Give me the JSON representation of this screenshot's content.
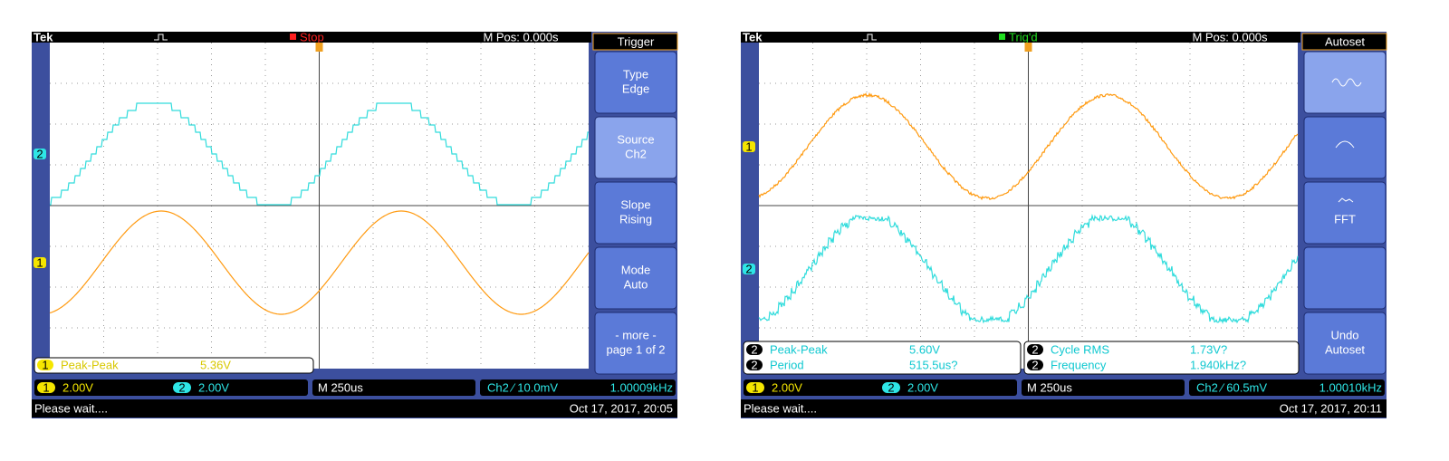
{
  "screens": [
    {
      "top_bar": {
        "brand": "Tek",
        "state": "Stop",
        "position": "M Pos: 0.000s"
      },
      "menu": {
        "title": "Trigger",
        "buttons": [
          [
            "Type",
            "Edge"
          ],
          [
            "Source",
            "Ch2"
          ],
          [
            "Slope",
            "Rising"
          ],
          [
            "Mode",
            "Auto"
          ],
          [
            "- more -",
            "page 1 of 2"
          ]
        ]
      },
      "measurements": [
        {
          "channel": "1",
          "name": "Peak-Peak",
          "value": "5.36V"
        }
      ],
      "channels": [
        {
          "number": "1",
          "scale": "2.00V"
        },
        {
          "number": "2",
          "scale": "2.00V"
        }
      ],
      "timebase": "M 250us",
      "trigger_readout": "Ch2 ⁄ 10.0mV",
      "frequency": "1.00009kHz",
      "status": "Please wait....",
      "timestamp": "Oct 17, 2017, 20:05"
    },
    {
      "top_bar": {
        "brand": "Tek",
        "state": "Trig'd",
        "position": "M Pos: 0.000s"
      },
      "menu": {
        "title": "Autoset",
        "buttons": [
          [],
          [],
          [
            "FFT"
          ],
          [],
          [
            "Undo",
            "Autoset"
          ]
        ]
      },
      "measurements": [
        {
          "channel": "2",
          "name": "Peak-Peak",
          "value": "5.60V"
        },
        {
          "channel": "2",
          "name": "Period",
          "value": "515.5us?"
        },
        {
          "channel": "2",
          "name": "Cycle RMS",
          "value": "1.73V?"
        },
        {
          "channel": "2",
          "name": "Frequency",
          "value": "1.940kHz?"
        }
      ],
      "channels": [
        {
          "number": "1",
          "scale": "2.00V"
        },
        {
          "number": "2",
          "scale": "2.00V"
        }
      ],
      "timebase": "M 250us",
      "trigger_readout": "Ch2 ⁄ 60.5mV",
      "frequency": "1.00010kHz",
      "status": "Please wait....",
      "timestamp": "Oct 17, 2017, 20:11"
    }
  ]
}
